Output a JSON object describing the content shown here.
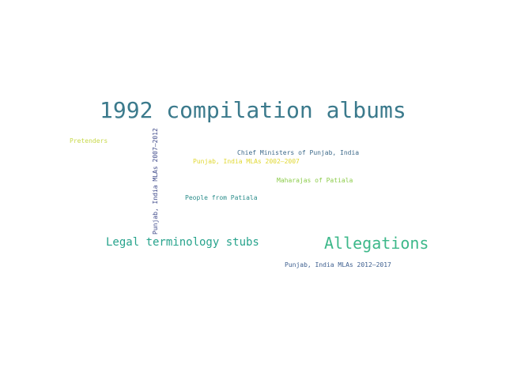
{
  "words": [
    {
      "text": "1992 compilation albums",
      "color": "#3b7a8c"
    },
    {
      "text": "Pretenders",
      "color": "#c8d94a"
    },
    {
      "text": "Punjab, India MLAs 2007–2012",
      "color": "#3f4a8a"
    },
    {
      "text": "Chief Ministers of Punjab, India",
      "color": "#3e6a8a"
    },
    {
      "text": "Punjab, India MLAs 2002–2007",
      "color": "#e0d832"
    },
    {
      "text": "Maharajas of Patiala",
      "color": "#8ccc4a"
    },
    {
      "text": "People from Patiala",
      "color": "#2a8c8a"
    },
    {
      "text": "Legal terminology stubs",
      "color": "#27a38c"
    },
    {
      "text": "Allegations",
      "color": "#3db88a"
    },
    {
      "text": "Punjab, India MLAs 2012–2017",
      "color": "#3f6090"
    }
  ]
}
